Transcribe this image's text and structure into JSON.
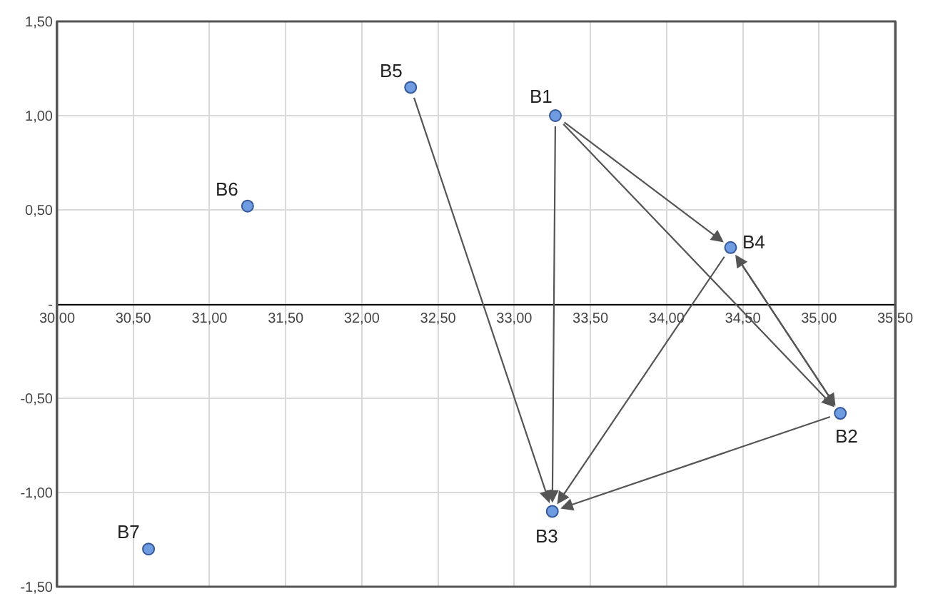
{
  "chart_data": {
    "type": "scatter",
    "x": [
      33.27,
      35.14,
      33.25,
      34.42,
      32.32,
      31.25,
      30.6
    ],
    "series": [
      {
        "color": "#6f9be0",
        "values": [
          1.0,
          -0.58,
          -1.1,
          0.3,
          1.15,
          0.52,
          -1.3
        ]
      }
    ],
    "annotations": [
      {
        "text": "B1",
        "x": 33.27,
        "y": 1.0
      },
      {
        "text": "B2",
        "x": 35.14,
        "y": -0.58
      },
      {
        "text": "B3",
        "x": 33.25,
        "y": -1.1
      },
      {
        "text": "B4",
        "x": 34.42,
        "y": 0.3
      },
      {
        "text": "B5",
        "x": 32.32,
        "y": 1.15
      },
      {
        "text": "B6",
        "x": 31.25,
        "y": 0.52
      },
      {
        "text": "B7",
        "x": 30.6,
        "y": -1.3
      }
    ],
    "xlim": [
      30,
      35.5
    ],
    "xticks": [
      {
        "value": 30,
        "label": "30,00"
      },
      {
        "value": 30.5,
        "label": "30,50"
      },
      {
        "value": 31,
        "label": "31,00"
      },
      {
        "value": 31.5,
        "label": "31,50"
      },
      {
        "value": 32,
        "label": "32,00"
      },
      {
        "value": 32.5,
        "label": "32,50"
      },
      {
        "value": 33,
        "label": "33,00"
      },
      {
        "value": 33.5,
        "label": "33,50"
      },
      {
        "value": 34,
        "label": "34,00"
      },
      {
        "value": 34.5,
        "label": "34,50"
      },
      {
        "value": 35,
        "label": "35,00"
      },
      {
        "value": 35.5,
        "label": "35,50"
      }
    ],
    "ylim": [
      -1.5,
      1.5
    ],
    "yticks": [
      {
        "value": -1.5,
        "label": "-1,50"
      },
      {
        "value": -1,
        "label": "-1,00"
      },
      {
        "value": -0.5,
        "label": "-0,50"
      },
      {
        "value": 0,
        "label": "-"
      },
      {
        "value": 0.5,
        "label": "0,50"
      },
      {
        "value": 1,
        "label": "1,00"
      },
      {
        "value": 1.5,
        "label": "1,50"
      }
    ],
    "grid": true,
    "marker": "circle"
  }
}
